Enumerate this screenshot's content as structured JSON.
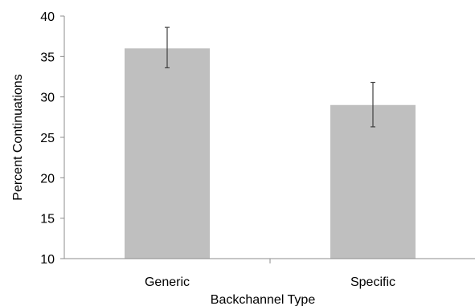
{
  "chart_data": {
    "type": "bar",
    "title": "",
    "xlabel": "Backchannel Type",
    "ylabel": "Percent Continuations",
    "categories": [
      "Generic",
      "Specific"
    ],
    "values": [
      36,
      29
    ],
    "error_bars": [
      {
        "low": 33.6,
        "high": 38.6
      },
      {
        "low": 26.3,
        "high": 31.8
      }
    ],
    "ylim": [
      10,
      40
    ],
    "yticks": [
      10,
      15,
      20,
      25,
      30,
      35,
      40
    ],
    "ytick_labels": [
      "10",
      "15",
      "20",
      "25",
      "30",
      "35",
      "40"
    ],
    "grid": false,
    "legend": "none",
    "colors": {
      "bar": "#bfbfbf",
      "error_bar": "#404040",
      "axis": "#8c8c8c"
    }
  }
}
